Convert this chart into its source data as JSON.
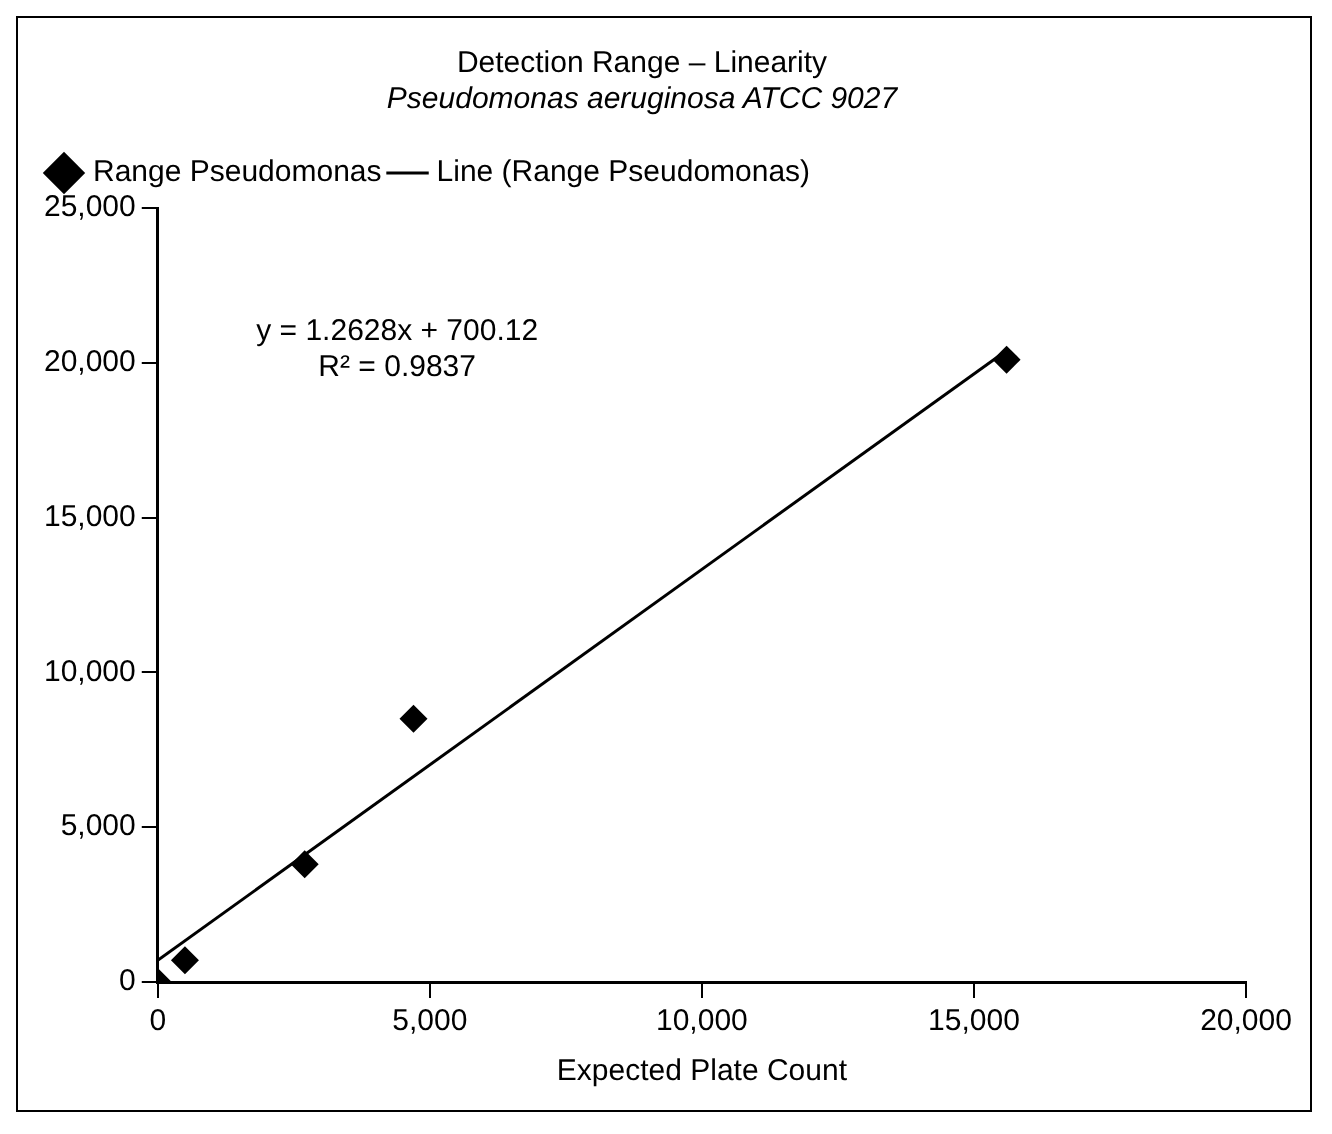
{
  "chart_data": {
    "type": "scatter",
    "title": "Detection Range – Linearity",
    "subtitle": "Pseudomonas aeruginosa ATCC 9027",
    "xlabel": "Expected Plate Count",
    "legend": "top left",
    "grid": false,
    "xlim": [
      0,
      20000
    ],
    "xticks": [
      {
        "value": 0,
        "label": "0"
      },
      {
        "value": 5000,
        "label": "5,000"
      },
      {
        "value": 10000,
        "label": "10,000"
      },
      {
        "value": 15000,
        "label": "15,000"
      },
      {
        "value": 20000,
        "label": "20,000"
      }
    ],
    "ylim": [
      0,
      25000
    ],
    "yticks": [
      {
        "value": 0,
        "label": "0"
      },
      {
        "value": 5000,
        "label": "5,000"
      },
      {
        "value": 10000,
        "label": "10,000"
      },
      {
        "value": 15000,
        "label": "15,000"
      },
      {
        "value": 20000,
        "label": "20,000"
      },
      {
        "value": 25000,
        "label": "25,000"
      }
    ],
    "annotations": [
      "y = 1.2628x + 700.12",
      "R² = 0.9837"
    ],
    "series": [
      {
        "name": "Range Pseudomonas",
        "marker": "diamond",
        "color": "#000000",
        "x": [
          0,
          500,
          2700,
          4700,
          15600
        ],
        "values": [
          0,
          700,
          3800,
          8500,
          20100
        ]
      },
      {
        "name": "Line (Range Pseudomonas)",
        "type": "line",
        "marker": "none",
        "line_style": "solid",
        "color": "#000000",
        "x": [
          0,
          15600
        ],
        "values": [
          700,
          20400
        ]
      }
    ]
  }
}
